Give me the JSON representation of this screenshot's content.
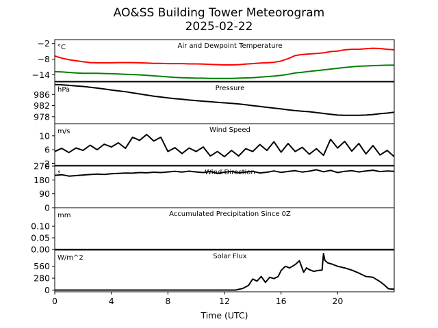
{
  "figure": {
    "title_line1": "AO&SS Building Tower Meteorogram",
    "title_line2": "2025-02-22",
    "xlabel": "Time (UTC)",
    "xticks": [
      0,
      4,
      8,
      12,
      16,
      20
    ],
    "xlim": [
      0,
      24
    ]
  },
  "chart_data": [
    {
      "type": "line",
      "title": "Air and Dewpoint Temperature",
      "unit": "°C",
      "ylim": [
        -16.5,
        -0.5
      ],
      "yticks": [
        -2,
        -8,
        -14
      ],
      "x": [
        0,
        0.5,
        1,
        1.5,
        2,
        2.5,
        3,
        3.5,
        4,
        4.5,
        5,
        5.5,
        6,
        6.5,
        7,
        7.5,
        8,
        8.5,
        9,
        9.5,
        10,
        10.5,
        11,
        11.5,
        12,
        12.5,
        13,
        13.5,
        14,
        14.5,
        15,
        15.5,
        16,
        16.5,
        17,
        17.5,
        18,
        18.5,
        19,
        19.5,
        20,
        20.5,
        21,
        21.5,
        22,
        22.5,
        23,
        23.5,
        24
      ],
      "series": [
        {
          "color": "#ff0000",
          "values": [
            -6.8,
            -7.6,
            -8.2,
            -8.6,
            -9.0,
            -9.3,
            -9.4,
            -9.4,
            -9.4,
            -9.3,
            -9.3,
            -9.3,
            -9.4,
            -9.5,
            -9.6,
            -9.6,
            -9.7,
            -9.7,
            -9.7,
            -9.8,
            -9.8,
            -9.9,
            -10.0,
            -10.1,
            -10.2,
            -10.2,
            -10.1,
            -9.9,
            -9.7,
            -9.5,
            -9.4,
            -9.2,
            -8.7,
            -7.8,
            -6.6,
            -6.2,
            -6.0,
            -5.8,
            -5.6,
            -5.1,
            -4.9,
            -4.4,
            -4.2,
            -4.2,
            -4.0,
            -3.8,
            -3.9,
            -4.2,
            -4.4
          ]
        },
        {
          "color": "#008000",
          "values": [
            -12.8,
            -12.9,
            -13.1,
            -13.3,
            -13.4,
            -13.4,
            -13.4,
            -13.5,
            -13.6,
            -13.7,
            -13.8,
            -13.9,
            -14.0,
            -14.2,
            -14.4,
            -14.6,
            -14.8,
            -15.0,
            -15.1,
            -15.2,
            -15.3,
            -15.3,
            -15.4,
            -15.4,
            -15.4,
            -15.4,
            -15.3,
            -15.2,
            -15.1,
            -14.9,
            -14.7,
            -14.5,
            -14.2,
            -13.8,
            -13.3,
            -13.0,
            -12.7,
            -12.4,
            -12.1,
            -11.8,
            -11.5,
            -11.2,
            -10.9,
            -10.7,
            -10.6,
            -10.5,
            -10.4,
            -10.3,
            -10.3
          ]
        }
      ]
    },
    {
      "type": "line",
      "title": "Pressure",
      "unit": "hPa",
      "ylim": [
        975.5,
        990.5
      ],
      "yticks": [
        986,
        982,
        978
      ],
      "x": [
        0,
        0.5,
        1,
        1.5,
        2,
        2.5,
        3,
        3.5,
        4,
        4.5,
        5,
        5.5,
        6,
        6.5,
        7,
        7.5,
        8,
        8.5,
        9,
        9.5,
        10,
        10.5,
        11,
        11.5,
        12,
        12.5,
        13,
        13.5,
        14,
        14.5,
        15,
        15.5,
        16,
        16.5,
        17,
        17.5,
        18,
        18.5,
        19,
        19.5,
        20,
        20.5,
        21,
        21.5,
        22,
        22.5,
        23,
        23.5,
        24
      ],
      "series": [
        {
          "color": "#000000",
          "values": [
            989.6,
            989.5,
            989.3,
            989.1,
            988.9,
            988.6,
            988.3,
            988.0,
            987.6,
            987.3,
            987.0,
            986.6,
            986.2,
            985.8,
            985.4,
            985.1,
            984.8,
            984.5,
            984.3,
            984.0,
            983.8,
            983.6,
            983.4,
            983.2,
            983.0,
            982.8,
            982.6,
            982.3,
            982.0,
            981.7,
            981.4,
            981.1,
            980.8,
            980.5,
            980.2,
            980.0,
            979.8,
            979.5,
            979.2,
            978.9,
            978.6,
            978.5,
            978.5,
            978.5,
            978.6,
            978.8,
            979.1,
            979.3,
            979.6
          ]
        }
      ]
    },
    {
      "type": "line",
      "title": "Wind Speed",
      "unit": "m/s",
      "ylim": [
        1.5,
        13.5
      ],
      "yticks": [
        10,
        6,
        2
      ],
      "x": [
        0,
        0.5,
        1,
        1.5,
        2,
        2.5,
        3,
        3.5,
        4,
        4.5,
        5,
        5.5,
        6,
        6.5,
        7,
        7.5,
        8,
        8.5,
        9,
        9.5,
        10,
        10.5,
        11,
        11.5,
        12,
        12.5,
        13,
        13.5,
        14,
        14.5,
        15,
        15.5,
        16,
        16.5,
        17,
        17.5,
        18,
        18.5,
        19,
        19.5,
        20,
        20.5,
        21,
        21.5,
        22,
        22.5,
        23,
        23.5,
        24
      ],
      "series": [
        {
          "color": "#000000",
          "values": [
            5.5,
            6.4,
            5.2,
            6.5,
            5.8,
            7.3,
            6.0,
            7.6,
            6.8,
            8.0,
            6.4,
            9.6,
            8.7,
            10.4,
            8.5,
            9.6,
            5.5,
            6.6,
            4.9,
            6.5,
            5.5,
            6.8,
            4.2,
            5.5,
            4.0,
            5.8,
            4.2,
            6.3,
            5.5,
            7.5,
            5.8,
            8.3,
            5.3,
            7.8,
            5.5,
            6.7,
            4.7,
            6.3,
            4.4,
            9.0,
            6.5,
            8.4,
            5.6,
            7.8,
            4.8,
            7.2,
            4.5,
            5.8,
            4.0
          ]
        }
      ]
    },
    {
      "type": "line",
      "title": "Wind Direction",
      "unit": "°",
      "ylim": [
        0,
        270
      ],
      "yticks": [
        270,
        180,
        90,
        0
      ],
      "x": [
        0,
        0.5,
        1,
        1.5,
        2,
        2.5,
        3,
        3.5,
        4,
        4.5,
        5,
        5.5,
        6,
        6.5,
        7,
        7.5,
        8,
        8.5,
        9,
        9.5,
        10,
        10.5,
        11,
        11.5,
        12,
        12.5,
        13,
        13.5,
        14,
        14.5,
        15,
        15.5,
        16,
        16.5,
        17,
        17.5,
        18,
        18.5,
        19,
        19.5,
        20,
        20.5,
        21,
        21.5,
        22,
        22.5,
        23,
        23.5,
        24
      ],
      "series": [
        {
          "color": "#000000",
          "values": [
            210,
            214,
            205,
            208,
            212,
            215,
            218,
            216,
            220,
            222,
            225,
            224,
            228,
            226,
            230,
            228,
            232,
            236,
            231,
            237,
            232,
            228,
            235,
            222,
            230,
            235,
            226,
            231,
            236,
            225,
            230,
            238,
            229,
            235,
            240,
            231,
            237,
            246,
            233,
            242,
            228,
            236,
            240,
            232,
            238,
            243,
            234,
            238,
            236
          ]
        }
      ]
    },
    {
      "type": "line",
      "title": "Accumulated Precipitation Since 0Z",
      "unit": "mm",
      "ylim": [
        0,
        0.18
      ],
      "yticks": [
        0.1,
        0.05,
        0.0
      ],
      "x": [
        0,
        24
      ],
      "series": [
        {
          "color": "#000000",
          "values": [
            0,
            0
          ]
        }
      ]
    },
    {
      "type": "line",
      "title": "Solar Flux",
      "unit": "W/m^2",
      "ylim": [
        -40,
        940
      ],
      "yticks": [
        560,
        280,
        0
      ],
      "x": [
        0,
        12.8,
        13.3,
        13.7,
        14,
        14.3,
        14.6,
        14.9,
        15.2,
        15.5,
        15.8,
        16,
        16.3,
        16.6,
        17,
        17.3,
        17.6,
        17.8,
        18,
        18.3,
        18.6,
        18.9,
        19,
        19.1,
        19.3,
        19.6,
        20,
        20.5,
        21,
        21.5,
        22,
        22.5,
        23,
        23.3,
        23.6,
        24
      ],
      "series": [
        {
          "color": "#000000",
          "values": [
            0,
            0,
            40,
            110,
            260,
            210,
            320,
            180,
            300,
            270,
            320,
            460,
            560,
            520,
            600,
            690,
            420,
            520,
            480,
            440,
            460,
            470,
            860,
            700,
            640,
            610,
            560,
            520,
            470,
            400,
            320,
            300,
            200,
            120,
            30,
            20
          ]
        }
      ]
    }
  ]
}
